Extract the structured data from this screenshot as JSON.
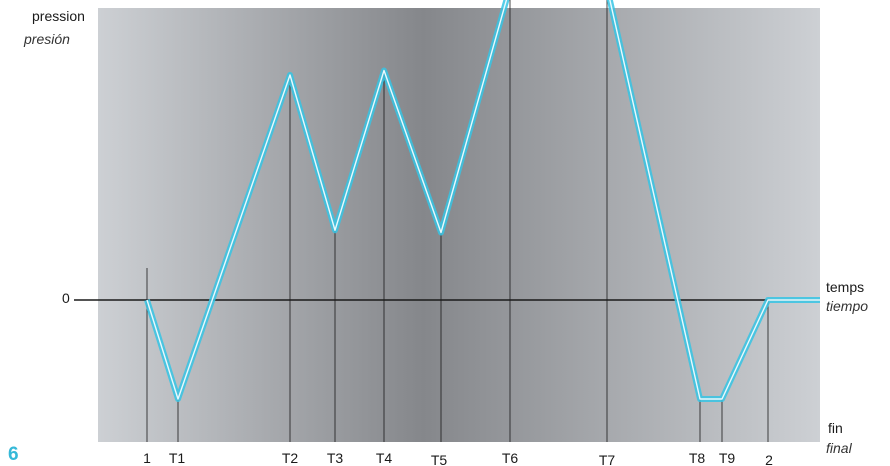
{
  "y_axis": {
    "label": "pression",
    "label_alt": "presión",
    "zero_label": "0"
  },
  "x_axis": {
    "label": "temps",
    "label_alt": "tiempo",
    "end_label": "fin",
    "end_label_alt": "final"
  },
  "page_number": "6",
  "colors": {
    "curve": "#36c4e4",
    "background_light": "#cdd0d4",
    "background_dark": "#85878b",
    "axis": "#1a1a1a"
  },
  "chart_data": {
    "type": "line",
    "title": "",
    "xlabel": "temps / tiempo",
    "ylabel": "pression / presión",
    "y_zero": 0,
    "x_ticks": [
      "1",
      "T1",
      "T2",
      "T3",
      "T4",
      "T5",
      "T6",
      "T7",
      "T8",
      "T9",
      "2"
    ],
    "series": [
      {
        "values": [
          0,
          -0.44,
          1.0,
          0.31,
          1.02,
          0.3,
          1.39,
          1.39,
          -0.44,
          -0.44,
          0,
          0
        ]
      }
    ]
  }
}
